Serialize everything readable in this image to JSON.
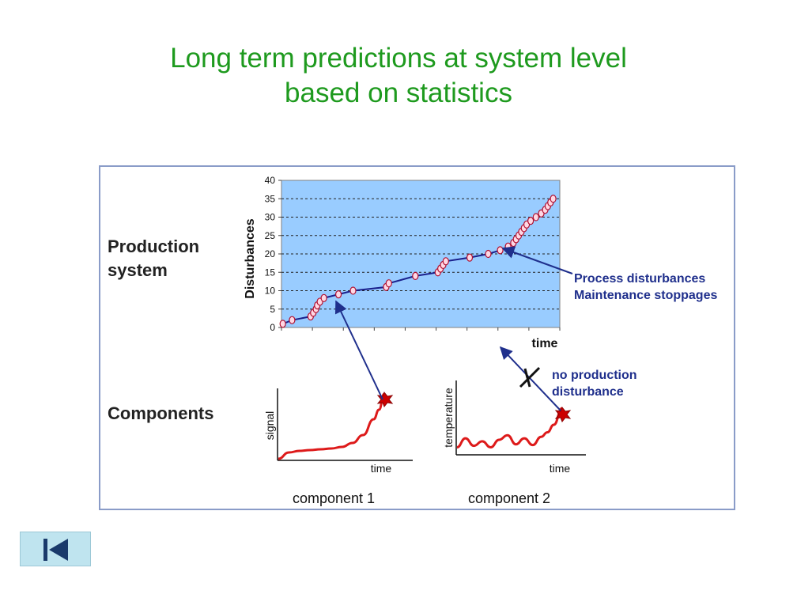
{
  "slide": {
    "title_line1": "Long term predictions at system level",
    "title_line2": "based on statistics"
  },
  "labels": {
    "production_line1": "Production",
    "production_line2": "system",
    "components": "Components",
    "annotation1_line1": "Process disturbances",
    "annotation1_line2": "Maintenance stoppages",
    "annotation2_line1": "no production",
    "annotation2_line2": "disturbance",
    "component1": "component 1",
    "component2": "component 2"
  },
  "nav": {
    "icon": "skip-to-start-icon"
  },
  "colors": {
    "title": "#1e9a1e",
    "plot_bg": "#99ccff",
    "annotation": "#1f2f8c",
    "signal": "#dd1a1a"
  },
  "chart_data": [
    {
      "type": "scatter",
      "title": "",
      "xlabel": "time",
      "ylabel": "Disturbances",
      "ylim": [
        0,
        40
      ],
      "yticks": [
        0,
        5,
        10,
        15,
        20,
        25,
        30,
        35,
        40
      ],
      "grid": true,
      "series": [
        {
          "x": [
            0.5,
            4.0,
            11.0,
            12.0,
            13.0,
            13.5,
            14.5,
            16.0,
            21.5,
            27.0,
            39.5,
            40.5,
            50.5,
            59.0,
            60.0,
            61.0,
            62.0,
            71.0,
            78.0,
            82.5,
            85.5,
            87.5,
            88.5,
            89.5,
            90.5,
            91.5,
            92.5,
            94.0,
            96.0,
            98.0,
            99.5,
            100.5,
            101.5,
            102.5
          ],
          "y": [
            1,
            2,
            3,
            4,
            5,
            6,
            7,
            8,
            9,
            10,
            11,
            12,
            14,
            15,
            16,
            17,
            18,
            19,
            20,
            21,
            22,
            23,
            24,
            25,
            26,
            27,
            28,
            29,
            30,
            31,
            32,
            33,
            34,
            35
          ]
        }
      ]
    },
    {
      "type": "line",
      "title": "",
      "xlabel": "time",
      "ylabel": "signal",
      "series": [
        {
          "name": "",
          "x": [
            0,
            10,
            20,
            30,
            40,
            50,
            60,
            70,
            80,
            90,
            95,
            100
          ],
          "y": [
            0,
            0.08,
            0.1,
            0.11,
            0.12,
            0.13,
            0.15,
            0.2,
            0.3,
            0.5,
            0.62,
            0.82
          ]
        }
      ]
    },
    {
      "type": "line",
      "title": "",
      "xlabel": "time",
      "ylabel": "temperature",
      "series": [
        {
          "name": "",
          "x": [
            0,
            8,
            16,
            24,
            32,
            40,
            48,
            56,
            64,
            72,
            80,
            86,
            92,
            100
          ],
          "y": [
            0.1,
            0.22,
            0.12,
            0.18,
            0.1,
            0.2,
            0.26,
            0.14,
            0.22,
            0.13,
            0.24,
            0.3,
            0.4,
            0.62
          ]
        }
      ]
    }
  ]
}
